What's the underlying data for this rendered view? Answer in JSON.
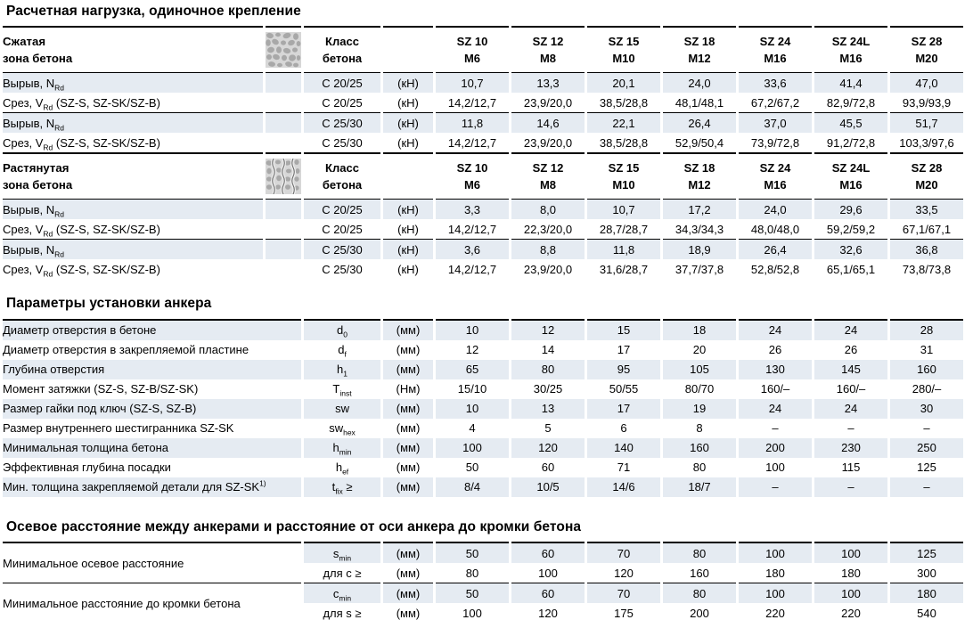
{
  "colors": {
    "row_shade": "#e5ebf2",
    "rule": "#000000",
    "text": "#000000",
    "icon_bg": "#d7d7d7",
    "icon_pebble": "#a8a8a8",
    "icon_crack": "#6b6b6b"
  },
  "icons": {
    "compressed_zone": "concrete-compressed-icon",
    "tension_zone": "concrete-cracked-icon"
  },
  "load_section": {
    "title": "Расчетная нагрузка, одиночное крепление",
    "class_header": {
      "line1": "Класс",
      "line2": "бетона"
    },
    "columns": [
      {
        "model": "SZ 10",
        "thread": "M6"
      },
      {
        "model": "SZ 12",
        "thread": "M8"
      },
      {
        "model": "SZ 15",
        "thread": "M10"
      },
      {
        "model": "SZ 18",
        "thread": "M12"
      },
      {
        "model": "SZ 24",
        "thread": "M16"
      },
      {
        "model": "SZ 24L",
        "thread": "M16"
      },
      {
        "model": "SZ 28",
        "thread": "M20"
      }
    ],
    "blocks": [
      {
        "zone_line1": "Сжатая",
        "zone_line2": "зона бетона",
        "icon": "concrete-compressed-icon",
        "rows": [
          {
            "label": [
              {
                "t": "Вырыв, N"
              },
              {
                "sub": "Rd"
              }
            ],
            "cls": "C 20/25",
            "unit": "(кН)",
            "values": [
              "10,7",
              "13,3",
              "20,1",
              "24,0",
              "33,6",
              "41,4",
              "47,0"
            ]
          },
          {
            "label": [
              {
                "t": "Срез, V"
              },
              {
                "sub": "Rd"
              },
              {
                "t": " (SZ-S, SZ-SK/SZ-B)"
              }
            ],
            "cls": "C 20/25",
            "unit": "(кН)",
            "values": [
              "14,2/12,7",
              "23,9/20,0",
              "38,5/28,8",
              "48,1/48,1",
              "67,2/67,2",
              "82,9/72,8",
              "93,9/93,9"
            ]
          },
          {
            "label": [
              {
                "t": "Вырыв, N"
              },
              {
                "sub": "Rd"
              }
            ],
            "cls": "C 25/30",
            "unit": "(кН)",
            "values": [
              "11,8",
              "14,6",
              "22,1",
              "26,4",
              "37,0",
              "45,5",
              "51,7"
            ]
          },
          {
            "label": [
              {
                "t": "Срез, V"
              },
              {
                "sub": "Rd"
              },
              {
                "t": " (SZ-S, SZ-SK/SZ-B)"
              }
            ],
            "cls": "C 25/30",
            "unit": "(кН)",
            "values": [
              "14,2/12,7",
              "23,9/20,0",
              "38,5/28,8",
              "52,9/50,4",
              "73,9/72,8",
              "91,2/72,8",
              "103,3/97,6"
            ]
          }
        ]
      },
      {
        "zone_line1": "Растянутая",
        "zone_line2": "зона бетона",
        "icon": "concrete-cracked-icon",
        "rows": [
          {
            "label": [
              {
                "t": "Вырыв, N"
              },
              {
                "sub": "Rd"
              }
            ],
            "cls": "C 20/25",
            "unit": "(кН)",
            "values": [
              "3,3",
              "8,0",
              "10,7",
              "17,2",
              "24,0",
              "29,6",
              "33,5"
            ]
          },
          {
            "label": [
              {
                "t": "Срез, V"
              },
              {
                "sub": "Rd"
              },
              {
                "t": " (SZ-S, SZ-SK/SZ-B)"
              }
            ],
            "cls": "C 20/25",
            "unit": "(кН)",
            "values": [
              "14,2/12,7",
              "22,3/20,0",
              "28,7/28,7",
              "34,3/34,3",
              "48,0/48,0",
              "59,2/59,2",
              "67,1/67,1"
            ]
          },
          {
            "label": [
              {
                "t": "Вырыв, N"
              },
              {
                "sub": "Rd"
              }
            ],
            "cls": "C 25/30",
            "unit": "(кН)",
            "values": [
              "3,6",
              "8,8",
              "11,8",
              "18,9",
              "26,4",
              "32,6",
              "36,8"
            ]
          },
          {
            "label": [
              {
                "t": "Срез, V"
              },
              {
                "sub": "Rd"
              },
              {
                "t": " (SZ-S, SZ-SK/SZ-B)"
              }
            ],
            "cls": "C 25/30",
            "unit": "(кН)",
            "values": [
              "14,2/12,7",
              "23,9/20,0",
              "31,6/28,7",
              "37,7/37,8",
              "52,8/52,8",
              "65,1/65,1",
              "73,8/73,8"
            ]
          }
        ]
      }
    ]
  },
  "install_section": {
    "title": "Параметры установки анкера",
    "rows": [
      {
        "label": [
          {
            "t": "Диаметр отверстия в бетоне"
          }
        ],
        "symbol": [
          {
            "t": "d"
          },
          {
            "sub": "0"
          }
        ],
        "unit": "(мм)",
        "values": [
          "10",
          "12",
          "15",
          "18",
          "24",
          "24",
          "28"
        ]
      },
      {
        "label": [
          {
            "t": "Диаметр отверстия в закрепляемой пластине"
          }
        ],
        "symbol": [
          {
            "t": "d"
          },
          {
            "sub": "f"
          }
        ],
        "unit": "(мм)",
        "values": [
          "12",
          "14",
          "17",
          "20",
          "26",
          "26",
          "31"
        ]
      },
      {
        "label": [
          {
            "t": "Глубина отверстия"
          }
        ],
        "symbol": [
          {
            "t": "h"
          },
          {
            "sub": "1"
          }
        ],
        "unit": "(мм)",
        "values": [
          "65",
          "80",
          "95",
          "105",
          "130",
          "145",
          "160"
        ]
      },
      {
        "label": [
          {
            "t": "Момент затяжки (SZ-S, SZ-B/SZ-SK)"
          }
        ],
        "symbol": [
          {
            "t": "T"
          },
          {
            "sub": "inst"
          }
        ],
        "unit": "(Нм)",
        "values": [
          "15/10",
          "30/25",
          "50/55",
          "80/70",
          "160/–",
          "160/–",
          "280/–"
        ]
      },
      {
        "label": [
          {
            "t": "Размер гайки под ключ (SZ-S, SZ-B)"
          }
        ],
        "symbol": [
          {
            "t": "sw"
          }
        ],
        "unit": "(мм)",
        "values": [
          "10",
          "13",
          "17",
          "19",
          "24",
          "24",
          "30"
        ]
      },
      {
        "label": [
          {
            "t": "Размер внутреннего шестигранника SZ-SK"
          }
        ],
        "symbol": [
          {
            "t": "sw"
          },
          {
            "sub": "hex"
          }
        ],
        "unit": "(мм)",
        "values": [
          "4",
          "5",
          "6",
          "8",
          "–",
          "–",
          "–"
        ]
      },
      {
        "label": [
          {
            "t": "Минимальная толщина бетона"
          }
        ],
        "symbol": [
          {
            "t": "h"
          },
          {
            "sub": "min"
          }
        ],
        "unit": "(мм)",
        "values": [
          "100",
          "120",
          "140",
          "160",
          "200",
          "230",
          "250"
        ]
      },
      {
        "label": [
          {
            "t": "Эффективная глубина посадки"
          }
        ],
        "symbol": [
          {
            "t": "h"
          },
          {
            "sub": "ef"
          }
        ],
        "unit": "(мм)",
        "values": [
          "50",
          "60",
          "71",
          "80",
          "100",
          "115",
          "125"
        ]
      },
      {
        "label": [
          {
            "t": "Мин. толщина закрепляемой детали для SZ-SK"
          },
          {
            "sup": "1)"
          }
        ],
        "symbol": [
          {
            "t": "t"
          },
          {
            "sub": "fix"
          },
          {
            "t": " ≥"
          }
        ],
        "unit": "(мм)",
        "values": [
          "8/4",
          "10/5",
          "14/6",
          "18/7",
          "–",
          "–",
          "–"
        ]
      }
    ]
  },
  "spacing_section": {
    "title": "Осевое расстояние между анкерами и расстояние от оси анкера до кромки бетона",
    "groups": [
      {
        "label": "Минимальное осевое расстояние",
        "rows": [
          {
            "symbol": [
              {
                "t": "s"
              },
              {
                "sub": "min"
              }
            ],
            "unit": "(мм)",
            "values": [
              "50",
              "60",
              "70",
              "80",
              "100",
              "100",
              "125"
            ]
          },
          {
            "symbol": [
              {
                "t": "для c ≥"
              }
            ],
            "unit": "(мм)",
            "values": [
              "80",
              "100",
              "120",
              "160",
              "180",
              "180",
              "300"
            ]
          }
        ]
      },
      {
        "label": "Минимальное расстояние до кромки бетона",
        "rows": [
          {
            "symbol": [
              {
                "t": "c"
              },
              {
                "sub": "min"
              }
            ],
            "unit": "(мм)",
            "values": [
              "50",
              "60",
              "70",
              "80",
              "100",
              "100",
              "180"
            ]
          },
          {
            "symbol": [
              {
                "t": "для s ≥"
              }
            ],
            "unit": "(мм)",
            "values": [
              "100",
              "120",
              "175",
              "200",
              "220",
              "220",
              "540"
            ]
          }
        ]
      }
    ]
  }
}
